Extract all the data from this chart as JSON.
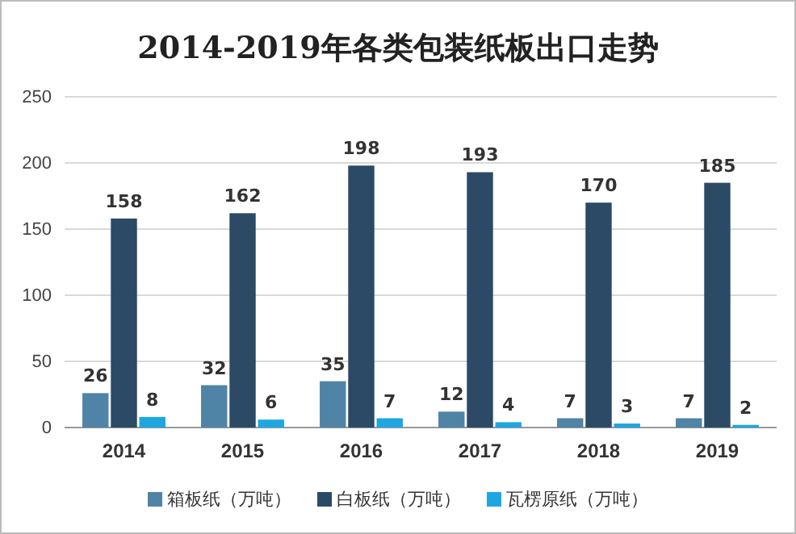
{
  "chart_data": {
    "type": "bar",
    "title": "2014-2019年各类包装纸板出口走势",
    "categories": [
      "2014",
      "2015",
      "2016",
      "2017",
      "2018",
      "2019"
    ],
    "series": [
      {
        "name": "箱板纸（万吨）",
        "color": "#4f84a6",
        "values": [
          26,
          32,
          35,
          12,
          7,
          7
        ]
      },
      {
        "name": "白板纸（万吨）",
        "color": "#2c4a66",
        "values": [
          158,
          162,
          198,
          193,
          170,
          185
        ]
      },
      {
        "name": "瓦楞原纸（万吨）",
        "color": "#1ea6e0",
        "values": [
          8,
          6,
          7,
          4,
          3,
          2
        ]
      }
    ],
    "ylim": [
      0,
      250
    ],
    "yticks": [
      0,
      50,
      100,
      150,
      200,
      250
    ],
    "grid": "y",
    "legend": "bottom",
    "data_labels": true
  }
}
